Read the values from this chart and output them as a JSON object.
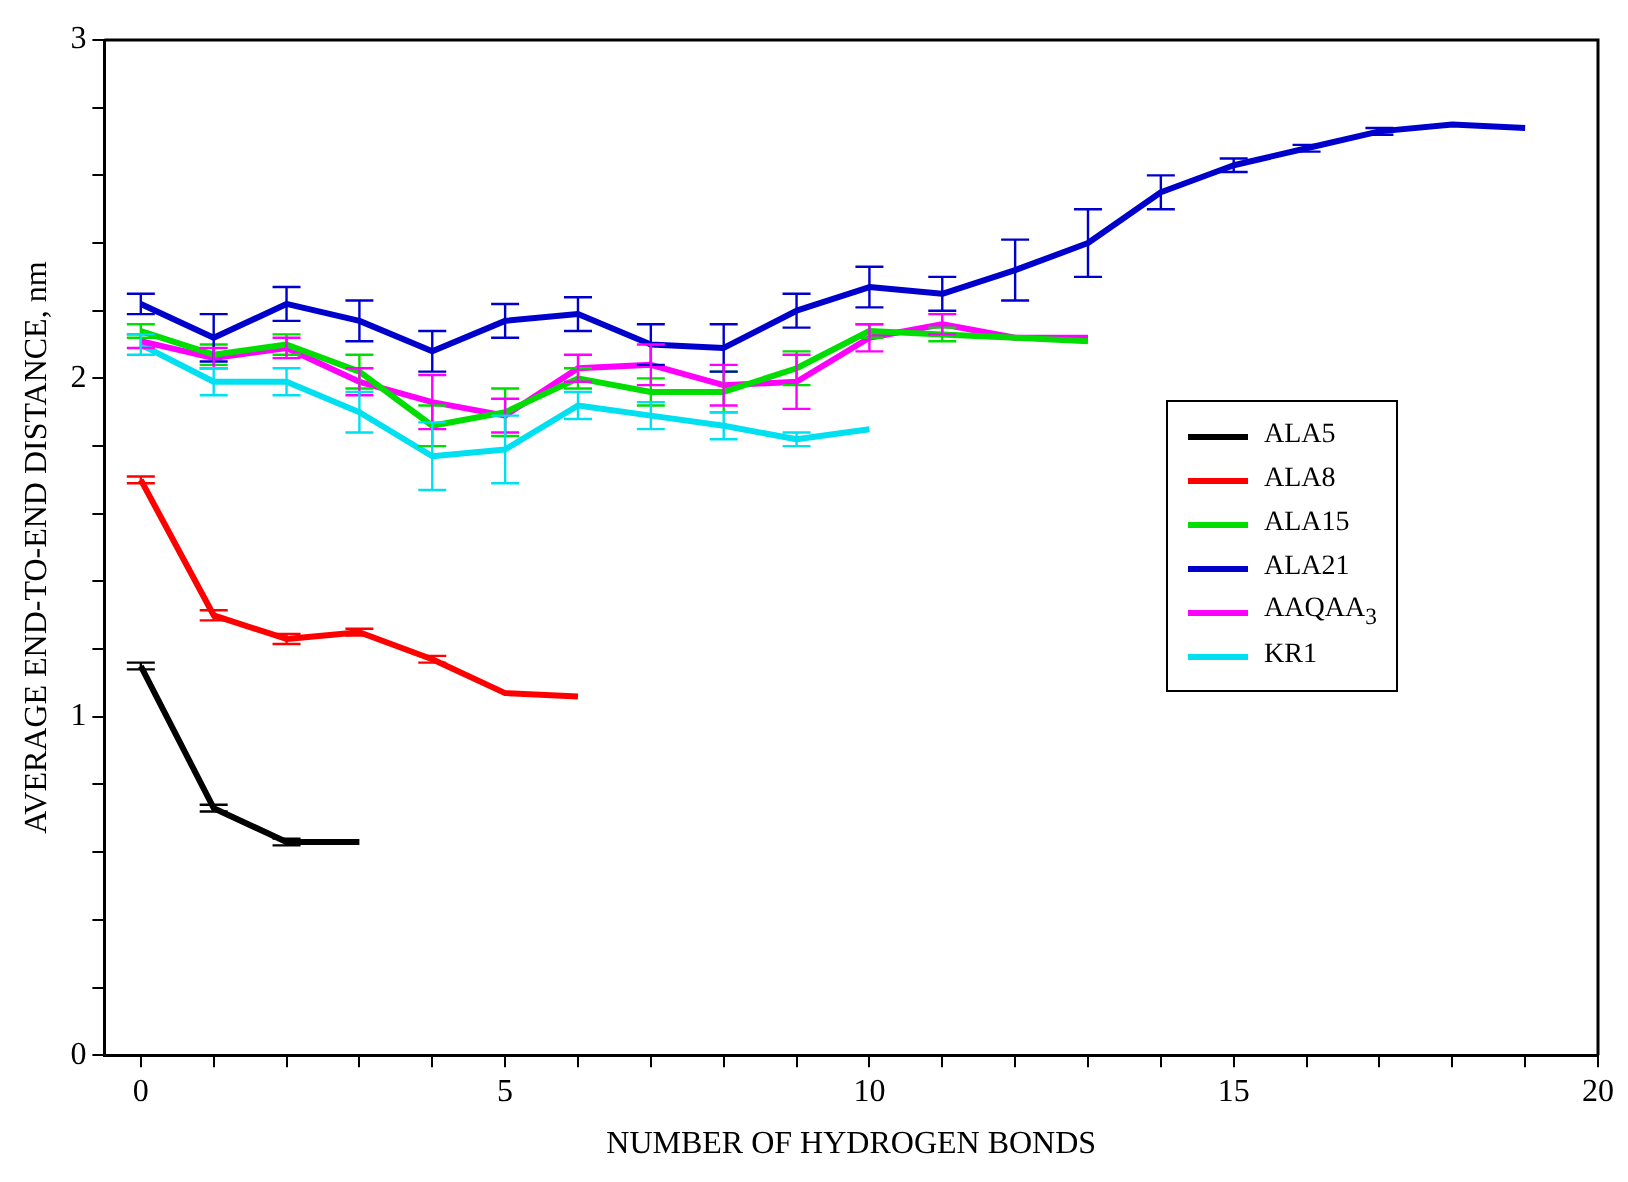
{
  "chart_data": {
    "type": "line",
    "xlabel": "NUMBER OF HYDROGEN BONDS",
    "ylabel": "AVERAGE END-TO-END DISTANCE, nm",
    "xlim": [
      -0.5,
      20
    ],
    "xticks": [
      0,
      {
        "value": 1,
        "label": null
      },
      {
        "value": 2,
        "label": null
      },
      {
        "value": 3,
        "label": null
      },
      {
        "value": 4,
        "label": null
      },
      5,
      {
        "value": 6,
        "label": null
      },
      {
        "value": 7,
        "label": null
      },
      {
        "value": 8,
        "label": null
      },
      {
        "value": 9,
        "label": null
      },
      10,
      {
        "value": 11,
        "label": null
      },
      {
        "value": 12,
        "label": null
      },
      {
        "value": 13,
        "label": null
      },
      {
        "value": 14,
        "label": null
      },
      15,
      {
        "value": 16,
        "label": null
      },
      {
        "value": 17,
        "label": null
      },
      {
        "value": 18,
        "label": null
      },
      {
        "value": 19,
        "label": null
      },
      20
    ],
    "ylim": [
      0,
      3
    ],
    "yticks": [
      0,
      {
        "value": 0.2,
        "label": null
      },
      {
        "value": 0.4,
        "label": null
      },
      {
        "value": 0.6,
        "label": null
      },
      {
        "value": 0.8,
        "label": null
      },
      1,
      {
        "value": 1.2,
        "label": null
      },
      {
        "value": 1.4,
        "label": null
      },
      {
        "value": 1.6,
        "label": null
      },
      {
        "value": 1.8,
        "label": null
      },
      2,
      {
        "value": 2.2,
        "label": null
      },
      {
        "value": 2.4,
        "label": null
      },
      {
        "value": 2.6,
        "label": null
      },
      {
        "value": 2.8,
        "label": null
      },
      3
    ],
    "grid": false,
    "legend": "right",
    "line_style": "solid",
    "series": [
      {
        "name": "ALA5",
        "color": "#000000",
        "x": [
          0,
          1,
          2,
          3
        ],
        "values": [
          1.15,
          0.73,
          0.63,
          0.63
        ],
        "errors": [
          0.01,
          0.01,
          0.01,
          null
        ]
      },
      {
        "name": "ALA8",
        "color": "#ff0000",
        "x": [
          0,
          1,
          2,
          3,
          4,
          5,
          6
        ],
        "values": [
          1.7,
          1.3,
          1.23,
          1.25,
          1.17,
          1.07,
          1.06
        ],
        "errors": [
          0.01,
          0.015,
          0.015,
          0.01,
          0.01,
          null,
          null
        ]
      },
      {
        "name": "ALA15",
        "color": "#00dd00",
        "x": [
          0,
          1,
          2,
          3,
          4,
          5,
          6,
          7,
          8,
          9,
          10,
          11,
          12,
          13
        ],
        "values": [
          2.14,
          2.07,
          2.1,
          2.02,
          1.86,
          1.9,
          2.0,
          1.96,
          1.96,
          2.03,
          2.14,
          2.13,
          2.12,
          2.11
        ],
        "errors": [
          0.02,
          0.03,
          0.03,
          0.05,
          0.06,
          0.07,
          0.03,
          0.04,
          0.06,
          0.05,
          0.02,
          0.02,
          null,
          null
        ]
      },
      {
        "name": "ALA21",
        "color": "#0000cc",
        "x": [
          0,
          1,
          2,
          3,
          4,
          5,
          6,
          7,
          8,
          9,
          10,
          11,
          12,
          13,
          14,
          15,
          16,
          17,
          18,
          19
        ],
        "values": [
          2.22,
          2.12,
          2.22,
          2.17,
          2.08,
          2.17,
          2.19,
          2.1,
          2.09,
          2.2,
          2.27,
          2.25,
          2.32,
          2.4,
          2.55,
          2.63,
          2.68,
          2.73,
          2.75,
          2.74
        ],
        "errors": [
          0.03,
          0.07,
          0.05,
          0.06,
          0.06,
          0.05,
          0.05,
          0.06,
          0.07,
          0.05,
          0.06,
          0.05,
          0.09,
          0.1,
          0.05,
          0.02,
          0.01,
          0.01,
          null,
          null
        ]
      },
      {
        "name": "AAQAA$_{3}$",
        "color": "#ff00ff",
        "x": [
          0,
          1,
          2,
          3,
          4,
          5,
          6,
          7,
          8,
          9,
          10,
          11,
          12,
          13
        ],
        "values": [
          2.11,
          2.06,
          2.09,
          1.99,
          1.93,
          1.89,
          2.03,
          2.04,
          1.98,
          1.99,
          2.12,
          2.16,
          2.12,
          2.12
        ],
        "errors": [
          0.02,
          0.03,
          0.03,
          0.04,
          0.08,
          0.05,
          0.04,
          0.06,
          0.06,
          0.08,
          0.04,
          0.03,
          null,
          null
        ]
      },
      {
        "name": "KR1",
        "color": "#00e0f0",
        "x": [
          0,
          1,
          2,
          3,
          4,
          5,
          6,
          7,
          8,
          9,
          10
        ],
        "values": [
          2.1,
          1.99,
          1.99,
          1.9,
          1.77,
          1.79,
          1.92,
          1.89,
          1.86,
          1.82,
          1.85
        ],
        "errors": [
          0.03,
          0.04,
          0.04,
          0.06,
          0.1,
          0.1,
          0.04,
          0.04,
          0.04,
          0.02,
          null
        ]
      }
    ]
  }
}
